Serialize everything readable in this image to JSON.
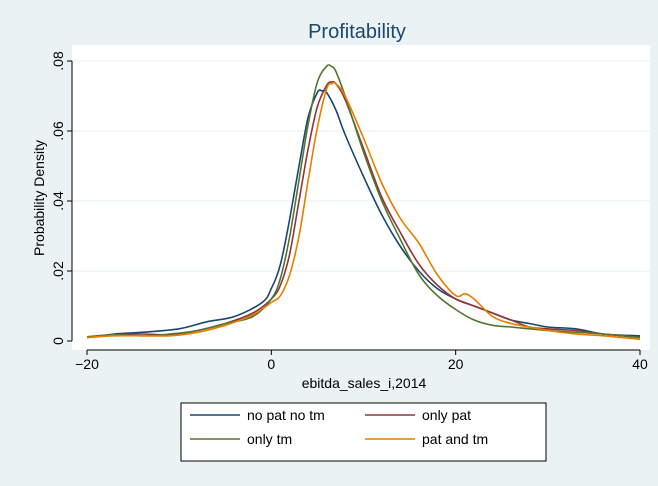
{
  "chart_data": {
    "type": "line",
    "title": "Profitability",
    "xlabel": "ebitda_sales_i,2014",
    "ylabel": "Probability Density",
    "xlim": [
      -21,
      41
    ],
    "ylim": [
      -0.002,
      0.082
    ],
    "x_ticks": [
      -20,
      0,
      20,
      40
    ],
    "x_tick_labels": [
      "−20",
      "0",
      "20",
      "40"
    ],
    "y_ticks": [
      0,
      0.02,
      0.04,
      0.06,
      0.08
    ],
    "y_tick_labels": [
      "0",
      ".02",
      ".04",
      ".06",
      ".08"
    ],
    "grid": "horizontal",
    "legend_position": "bottom",
    "series": [
      {
        "name": "no pat no tm",
        "color": "#1a476f",
        "points": [
          [
            -20,
            0.001
          ],
          [
            -17,
            0.002
          ],
          [
            -14,
            0.0025
          ],
          [
            -10,
            0.0035
          ],
          [
            -7,
            0.0055
          ],
          [
            -4,
            0.007
          ],
          [
            -1,
            0.011
          ],
          [
            0,
            0.015
          ],
          [
            1,
            0.022
          ],
          [
            2,
            0.035
          ],
          [
            3,
            0.05
          ],
          [
            4,
            0.064
          ],
          [
            5,
            0.071
          ],
          [
            5.5,
            0.0715
          ],
          [
            6,
            0.071
          ],
          [
            7,
            0.066
          ],
          [
            8,
            0.059
          ],
          [
            10,
            0.047
          ],
          [
            12,
            0.036
          ],
          [
            14,
            0.027
          ],
          [
            16,
            0.02
          ],
          [
            18,
            0.015
          ],
          [
            20,
            0.012
          ],
          [
            22,
            0.01
          ],
          [
            24,
            0.008
          ],
          [
            26,
            0.006
          ],
          [
            28,
            0.005
          ],
          [
            30,
            0.004
          ],
          [
            33,
            0.0035
          ],
          [
            36,
            0.002
          ],
          [
            40,
            0.0015
          ]
        ]
      },
      {
        "name": "only pat",
        "color": "#90353b",
        "points": [
          [
            -20,
            0.001
          ],
          [
            -17,
            0.0018
          ],
          [
            -14,
            0.002
          ],
          [
            -11,
            0.0018
          ],
          [
            -8,
            0.003
          ],
          [
            -5,
            0.005
          ],
          [
            -2,
            0.008
          ],
          [
            0,
            0.012
          ],
          [
            1,
            0.016
          ],
          [
            2,
            0.025
          ],
          [
            3,
            0.04
          ],
          [
            4,
            0.055
          ],
          [
            5,
            0.067
          ],
          [
            6,
            0.073
          ],
          [
            6.5,
            0.074
          ],
          [
            7,
            0.0735
          ],
          [
            8,
            0.069
          ],
          [
            10,
            0.055
          ],
          [
            12,
            0.041
          ],
          [
            14,
            0.031
          ],
          [
            16,
            0.022
          ],
          [
            18,
            0.016
          ],
          [
            20,
            0.012
          ],
          [
            22,
            0.01
          ],
          [
            24,
            0.008
          ],
          [
            26,
            0.006
          ],
          [
            28,
            0.004
          ],
          [
            30,
            0.0035
          ],
          [
            33,
            0.003
          ],
          [
            36,
            0.002
          ],
          [
            40,
            0.001
          ]
        ]
      },
      {
        "name": "only tm",
        "color": "#55752f",
        "points": [
          [
            -20,
            0.0012
          ],
          [
            -17,
            0.0018
          ],
          [
            -14,
            0.0015
          ],
          [
            -11,
            0.002
          ],
          [
            -8,
            0.003
          ],
          [
            -5,
            0.005
          ],
          [
            -2,
            0.007
          ],
          [
            0,
            0.012
          ],
          [
            1,
            0.018
          ],
          [
            2,
            0.03
          ],
          [
            3,
            0.046
          ],
          [
            4,
            0.062
          ],
          [
            5,
            0.074
          ],
          [
            6,
            0.0785
          ],
          [
            6.5,
            0.0785
          ],
          [
            7,
            0.077
          ],
          [
            8,
            0.07
          ],
          [
            10,
            0.054
          ],
          [
            12,
            0.04
          ],
          [
            14,
            0.029
          ],
          [
            16,
            0.019
          ],
          [
            18,
            0.013
          ],
          [
            20,
            0.009
          ],
          [
            22,
            0.006
          ],
          [
            24,
            0.0045
          ],
          [
            26,
            0.004
          ],
          [
            28,
            0.0035
          ],
          [
            30,
            0.003
          ],
          [
            33,
            0.0025
          ],
          [
            36,
            0.002
          ],
          [
            40,
            0.001
          ]
        ]
      },
      {
        "name": "pat and tm",
        "color": "#e37e00",
        "points": [
          [
            -20,
            0.001
          ],
          [
            -17,
            0.0015
          ],
          [
            -14,
            0.0015
          ],
          [
            -11,
            0.0015
          ],
          [
            -8,
            0.0025
          ],
          [
            -5,
            0.0045
          ],
          [
            -2,
            0.0075
          ],
          [
            0,
            0.011
          ],
          [
            1,
            0.013
          ],
          [
            2,
            0.019
          ],
          [
            3,
            0.03
          ],
          [
            4,
            0.046
          ],
          [
            5,
            0.061
          ],
          [
            6,
            0.072
          ],
          [
            6.5,
            0.0735
          ],
          [
            7,
            0.0735
          ],
          [
            8,
            0.07
          ],
          [
            10,
            0.058
          ],
          [
            12,
            0.045
          ],
          [
            14,
            0.035
          ],
          [
            16,
            0.028
          ],
          [
            18,
            0.019
          ],
          [
            20,
            0.013
          ],
          [
            21,
            0.0135
          ],
          [
            22,
            0.012
          ],
          [
            24,
            0.007
          ],
          [
            26,
            0.005
          ],
          [
            28,
            0.004
          ],
          [
            30,
            0.003
          ],
          [
            33,
            0.002
          ],
          [
            36,
            0.0015
          ],
          [
            40,
            0.0005
          ]
        ]
      }
    ]
  }
}
